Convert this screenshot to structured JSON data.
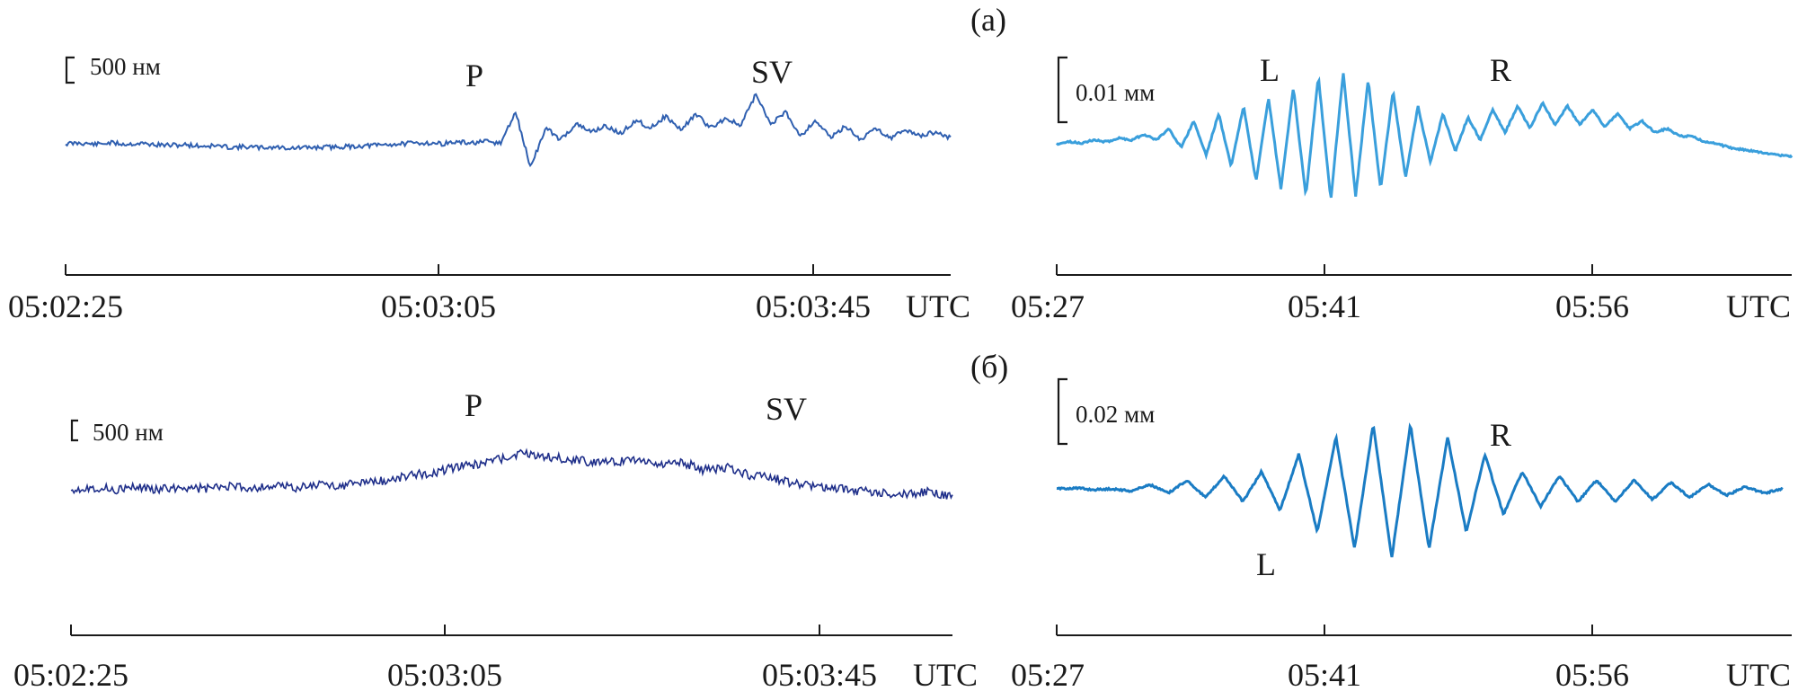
{
  "figure": {
    "panels": [
      {
        "tag": "(а)",
        "scale_left": "500 нм",
        "scale_right": "0.01 мм",
        "phases_left": [
          "P",
          "SV"
        ],
        "phases_right": [
          "L",
          "R"
        ],
        "ticks_left": [
          "05:02:25",
          "05:03:05",
          "05:03:45"
        ],
        "ticks_right": [
          "05:27",
          "05:41",
          "05:56"
        ],
        "unit": "UTC"
      },
      {
        "tag": "(б)",
        "scale_left": "500 нм",
        "scale_right": "0.02 мм",
        "phases_left": [
          "P",
          "SV"
        ],
        "phases_right": [
          "L",
          "R"
        ],
        "ticks_left": [
          "05:02:25",
          "05:03:05",
          "05:03:45"
        ],
        "ticks_right": [
          "05:27",
          "05:41",
          "05:56"
        ],
        "unit": "UTC"
      }
    ],
    "colors": {
      "short_period_a": "#2f5fb0",
      "short_period_b": "#1f2f8a",
      "long_period_a": "#3a9fdc",
      "long_period_b": "#1a7cc4",
      "axis": "#1a1a1a"
    }
  },
  "chart_data": [
    {
      "type": "line",
      "panel": "(а)",
      "title": "",
      "xlabel": "UTC",
      "ylabel": "",
      "x_ticks": [
        "05:02:25",
        "05:03:05",
        "05:03:45"
      ],
      "scale_bar": "500 нм",
      "annotations": [
        "P",
        "SV"
      ],
      "series": [
        {
          "values": [
            0,
            0.04,
            -0.03,
            0.05,
            -0.02,
            0.02,
            -0.05,
            -0.08,
            -0.05,
            -0.12,
            -0.1,
            -0.18,
            -0.15,
            -0.2,
            -0.17,
            -0.22,
            -0.2,
            -0.18,
            -0.16,
            -0.14,
            -0.1,
            -0.06,
            -0.02,
            0.02,
            0.05,
            0.0,
            0.08,
            0.04,
            0.1,
            0.02,
            1.6,
            -1.2,
            0.8,
            0.2,
            1.0,
            0.6,
            0.9,
            0.5,
            1.2,
            0.8,
            1.4,
            0.7,
            1.5,
            0.8,
            1.3,
            0.9,
            2.5,
            1.0,
            1.6,
            0.4,
            1.2,
            0.3,
            0.9,
            0.2,
            0.8,
            0.3,
            0.7,
            0.4,
            0.6,
            0.3
          ],
          "color": "#2f5fb0"
        }
      ]
    },
    {
      "type": "line",
      "panel": "(а)",
      "title": "",
      "xlabel": "UTC",
      "ylabel": "",
      "x_ticks": [
        "05:27",
        "05:41",
        "05:56"
      ],
      "scale_bar": "0.01 мм",
      "annotations": [
        "L",
        "R"
      ],
      "series": [
        {
          "values": [
            0,
            0.05,
            0.02,
            0.1,
            0.05,
            0.15,
            0.1,
            0.25,
            0.1,
            0.4,
            -0.1,
            0.6,
            -0.3,
            0.8,
            -0.6,
            1.0,
            -1.0,
            1.2,
            -1.2,
            1.5,
            -1.4,
            1.8,
            -1.5,
            1.9,
            -1.4,
            1.7,
            -1.2,
            1.4,
            -0.9,
            1.0,
            -0.5,
            0.8,
            -0.2,
            0.7,
            0.1,
            0.9,
            0.3,
            1.0,
            0.4,
            1.1,
            0.5,
            1.0,
            0.5,
            0.9,
            0.45,
            0.8,
            0.4,
            0.6,
            0.3,
            0.4,
            0.2,
            0.2,
            0.05,
            0.0,
            -0.1,
            -0.15,
            -0.2,
            -0.25,
            -0.3,
            -0.35
          ],
          "color": "#3a9fdc"
        }
      ]
    },
    {
      "type": "line",
      "panel": "(б)",
      "title": "",
      "xlabel": "UTC",
      "ylabel": "",
      "x_ticks": [
        "05:02:25",
        "05:03:05",
        "05:03:45"
      ],
      "scale_bar": "500 нм",
      "annotations": [
        "P",
        "SV"
      ],
      "series": [
        {
          "values": [
            0,
            0.05,
            -0.03,
            0.05,
            -0.02,
            0.06,
            0.0,
            0.08,
            0.02,
            0.1,
            0.05,
            0.15,
            0.1,
            0.25,
            0.3,
            0.5,
            0.6,
            0.8,
            0.9,
            1.1,
            1.3,
            1.2,
            1.1,
            1.0,
            1.0,
            1.1,
            0.9,
            1.0,
            0.7,
            0.8,
            0.5,
            0.4,
            0.2,
            0.1,
            0.0,
            -0.1,
            -0.15,
            -0.2,
            -0.1,
            -0.3
          ],
          "color": "#1f2f8a"
        }
      ]
    },
    {
      "type": "line",
      "panel": "(б)",
      "title": "",
      "xlabel": "UTC",
      "ylabel": "",
      "x_ticks": [
        "05:27",
        "05:41",
        "05:56"
      ],
      "scale_bar": "0.02 мм",
      "annotations": [
        "L",
        "R"
      ],
      "series": [
        {
          "values": [
            0,
            0.02,
            -0.02,
            0.0,
            -0.05,
            0.1,
            -0.1,
            0.2,
            -0.2,
            0.3,
            -0.3,
            0.4,
            -0.5,
            0.8,
            -1.0,
            1.2,
            -1.4,
            1.5,
            -1.6,
            1.5,
            -1.4,
            1.2,
            -1.0,
            0.8,
            -0.6,
            0.4,
            -0.4,
            0.3,
            -0.3,
            0.2,
            -0.3,
            0.2,
            -0.25,
            0.15,
            -0.2,
            0.1,
            -0.15,
            0.05,
            -0.1,
            0.0
          ],
          "color": "#1a7cc4"
        }
      ]
    }
  ]
}
